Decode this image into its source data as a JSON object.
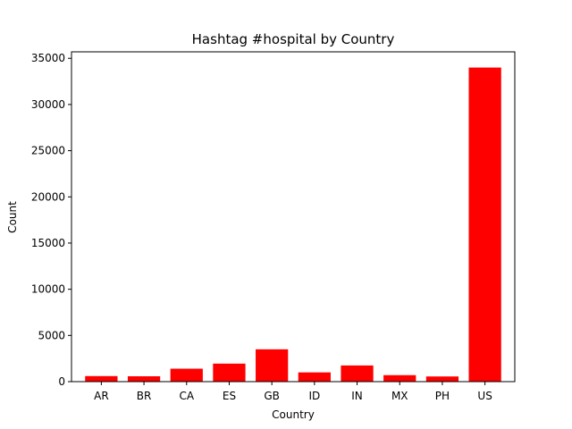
{
  "chart_data": {
    "type": "bar",
    "title": "Hashtag #hospital by Country",
    "xlabel": "Country",
    "ylabel": "Count",
    "categories": [
      "AR",
      "BR",
      "CA",
      "ES",
      "GB",
      "ID",
      "IN",
      "MX",
      "PH",
      "US"
    ],
    "values": [
      600,
      580,
      1400,
      1950,
      3500,
      1000,
      1750,
      700,
      560,
      34000
    ],
    "ylim": [
      0,
      35700
    ],
    "yticks": [
      0,
      5000,
      10000,
      15000,
      20000,
      25000,
      30000,
      35000
    ],
    "grid": false,
    "legend": "none",
    "bar_color": "#ff0000"
  }
}
